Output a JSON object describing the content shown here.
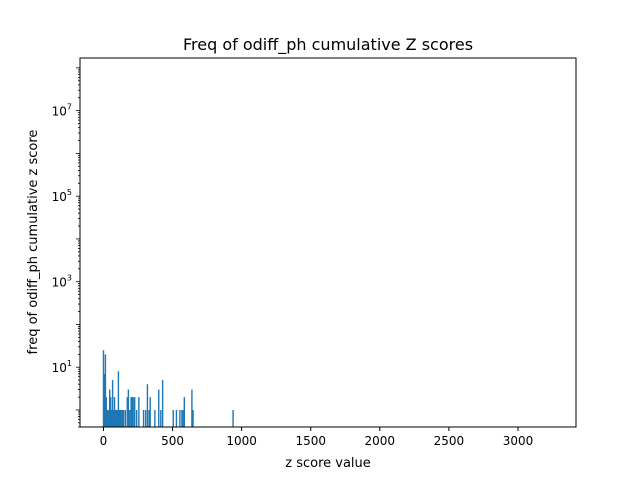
{
  "chart_data": {
    "type": "bar",
    "title": "Freq of odiff_ph cumulative Z scores",
    "xlabel": "z score value",
    "ylabel": "freq of odiff_ph cumulative z score",
    "xlim": [
      -170,
      3420
    ],
    "ylim": [
      0.4,
      170000000
    ],
    "yscale": "log",
    "grid": false,
    "color": "#1f77b4",
    "xticks": [
      0,
      500,
      1000,
      1500,
      2000,
      2500,
      3000
    ],
    "xtick_labels": [
      "0",
      "500",
      "1000",
      "1500",
      "2000",
      "2500",
      "3000"
    ],
    "yticks": [
      10,
      1000,
      100000,
      10000000
    ],
    "ytick_labels": [
      {
        "base": "10",
        "exp": "1"
      },
      {
        "base": "10",
        "exp": "3"
      },
      {
        "base": "10",
        "exp": "5"
      },
      {
        "base": "10",
        "exp": "7"
      }
    ],
    "x": [
      0,
      7,
      14,
      20,
      24,
      30,
      38,
      45,
      52,
      58,
      66,
      72,
      80,
      86,
      93,
      100,
      108,
      115,
      122,
      128,
      136,
      145,
      158,
      172,
      180,
      190,
      200,
      208,
      215,
      226,
      240,
      256,
      290,
      305,
      318,
      330,
      338,
      372,
      400,
      415,
      428,
      505,
      528,
      553,
      568,
      576,
      585,
      640,
      648,
      938
    ],
    "values": [
      25,
      7,
      20,
      2,
      1,
      1,
      1,
      3,
      2,
      1,
      5,
      1,
      2,
      1,
      1,
      1,
      8,
      1,
      1,
      1,
      1,
      1,
      1,
      2,
      3,
      1,
      2,
      2,
      2,
      2,
      1,
      2,
      1,
      1,
      4,
      1,
      2,
      1,
      3,
      1,
      5,
      1,
      1,
      1,
      1,
      1,
      2,
      3,
      1,
      1
    ]
  }
}
